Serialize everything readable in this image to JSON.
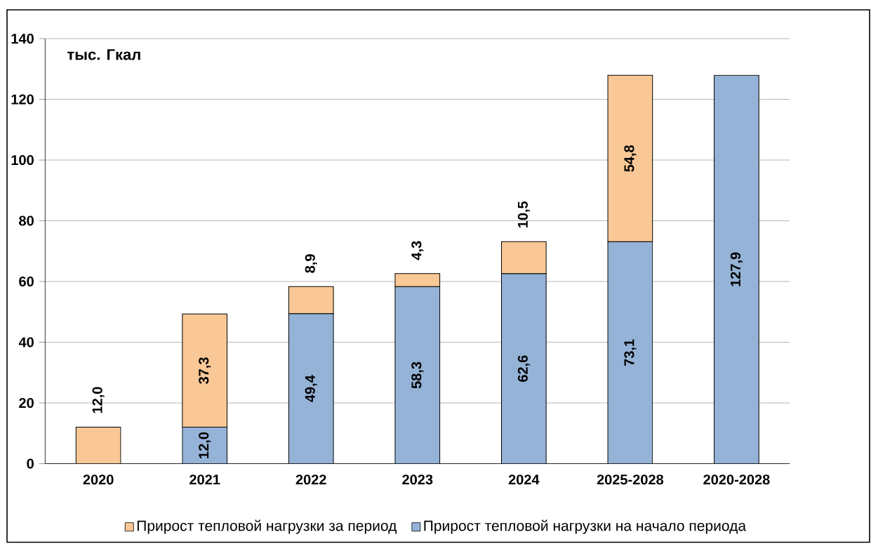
{
  "chart_data": {
    "type": "bar",
    "stacked": true,
    "ylabel": "тыс. Гкал",
    "categories": [
      "2020",
      "2021",
      "2022",
      "2023",
      "2024",
      "2025-2028",
      "2020-2028"
    ],
    "series": [
      {
        "name": "Прирост тепловой нагрузки на начало периода",
        "color": "#95b3d7",
        "values": [
          null,
          12.0,
          49.4,
          58.3,
          62.6,
          73.1,
          127.9
        ],
        "value_labels": [
          null,
          "12,0",
          "49,4",
          "58,3",
          "62,6",
          "73,1",
          "127,9"
        ]
      },
      {
        "name": "Прирост тепловой нагрузки за период",
        "color": "#f9c896",
        "values": [
          12.0,
          37.3,
          8.9,
          4.3,
          10.5,
          54.8,
          null
        ],
        "value_labels": [
          "12,0",
          "37,3",
          "8,9",
          "4,3",
          "10,5",
          "54,8",
          null
        ]
      }
    ],
    "ylim": [
      0,
      140
    ],
    "yticks": [
      0,
      20,
      40,
      60,
      80,
      100,
      120,
      140
    ],
    "grid": "y",
    "legend": "bottom",
    "data_labels": true
  }
}
